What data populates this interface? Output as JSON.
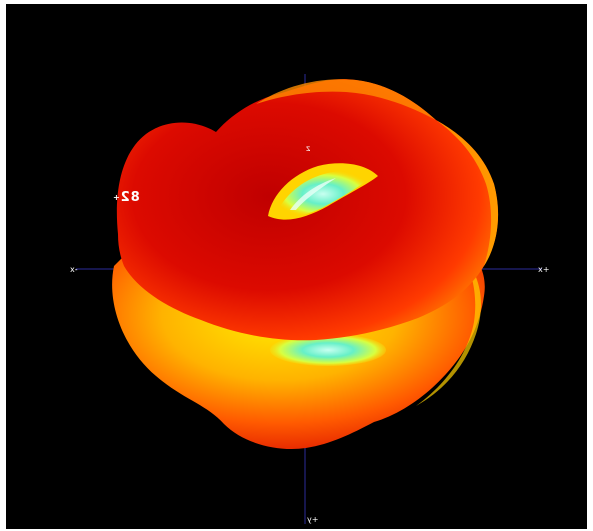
{
  "viewer": {
    "axes": {
      "z_label": "z",
      "x_pos_label": "+x",
      "x_neg_label": "-x",
      "y_pos_label": "+y"
    },
    "readout": {
      "value": "82",
      "marker": "+"
    },
    "colors": {
      "background": "#000000",
      "axis_line": "#2d2d9a",
      "surface_dark": "#b30000",
      "surface_mid": "#ff2a00",
      "surface_light": "#ffb000",
      "surface_yellow": "#ffe800",
      "hole_cyan": "#66f0c8"
    }
  }
}
